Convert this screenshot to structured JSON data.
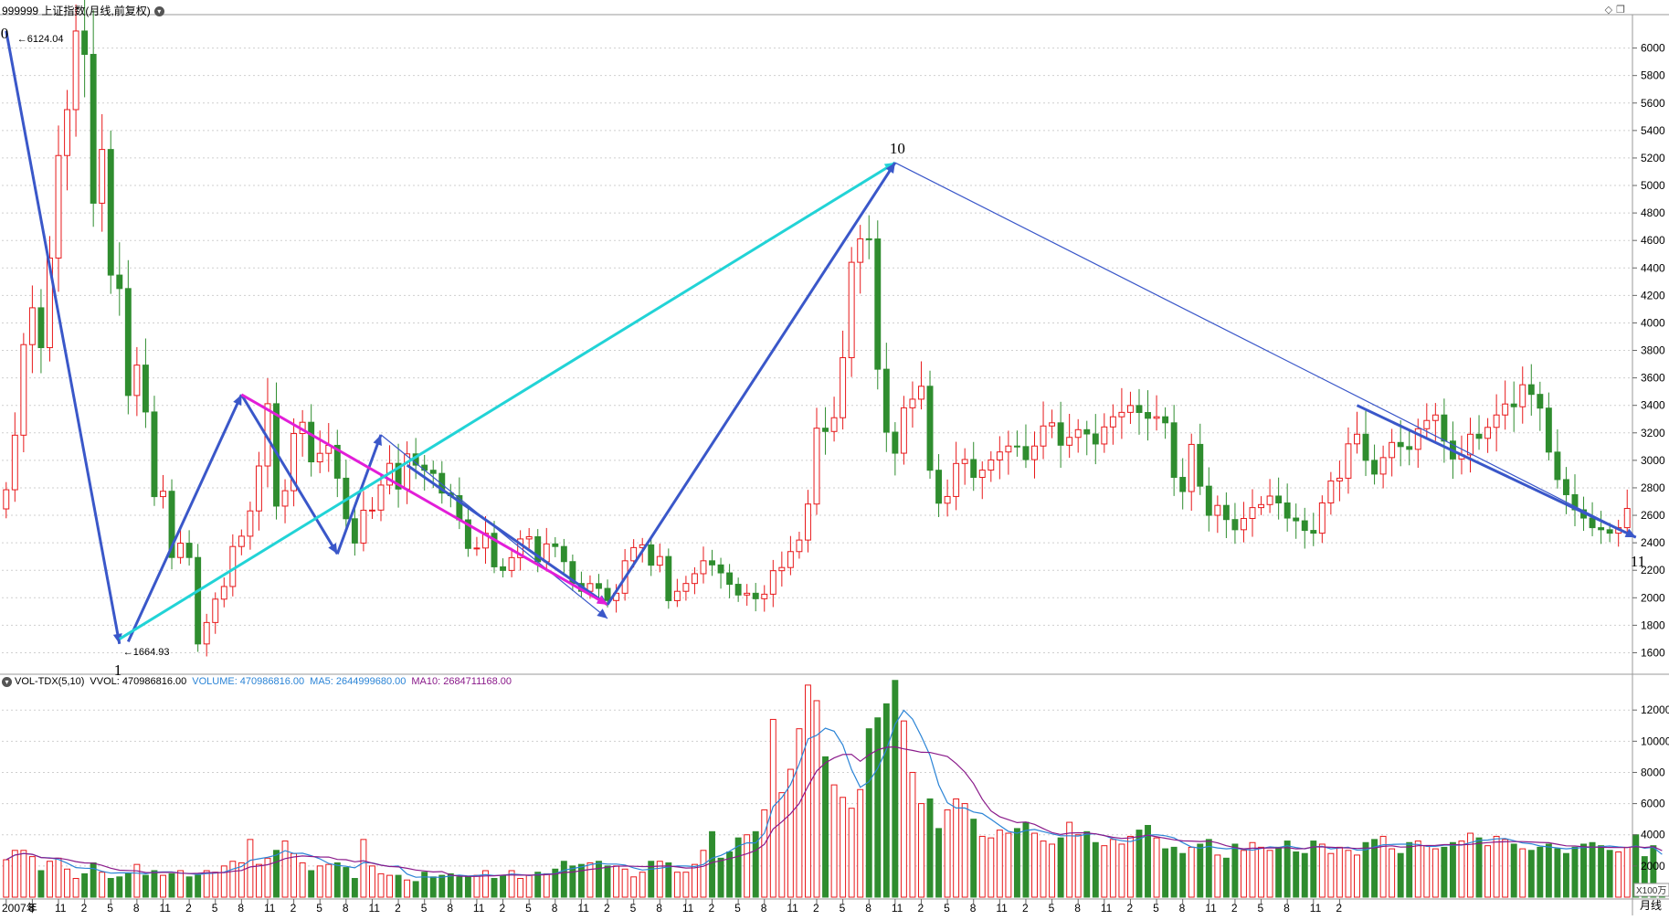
{
  "header": {
    "title": "999999 上证指数(月线,前复权)",
    "gear_icon": "chevron-down-icon",
    "window_icons": [
      "diamond-icon",
      "window-icon"
    ]
  },
  "indicator": {
    "name": "VOL-TDX(5,10)",
    "vvol": "VVOL: 470986816.00",
    "volume": "VOLUME: 470986816.00",
    "ma5": "MA5: 2644999680.00",
    "ma10": "MA10: 2684711168.00"
  },
  "period_label": "月线",
  "volume_unit": "X100万",
  "colors": {
    "up": "#e8191b",
    "down": "#2f8d2f",
    "wave": "#3a57c9",
    "cyan": "#22d3d6",
    "magenta": "#e21ed8",
    "ma5": "#2b84d6",
    "ma10": "#8a1a8a",
    "grid": "#cfcfcf"
  },
  "chart_data": [
    {
      "type": "candlestick",
      "price_axis": {
        "ticks": [
          1600,
          1800,
          2000,
          2200,
          2400,
          2600,
          2800,
          3000,
          3200,
          3400,
          3600,
          3800,
          4000,
          4200,
          4400,
          4600,
          4800,
          5000,
          5200,
          5400,
          5600,
          5800,
          6000
        ],
        "range": [
          1510,
          6230
        ]
      },
      "x_labels": [
        "2007年",
        "8",
        "11",
        "2",
        "5",
        "8",
        "11",
        "2",
        "5",
        "8",
        "11",
        "2",
        "5",
        "8",
        "11",
        "2",
        "5",
        "8",
        "11",
        "2",
        "5",
        "8",
        "11",
        "2",
        "5",
        "8",
        "11",
        "2",
        "5",
        "8",
        "11",
        "2",
        "5",
        "8",
        "11",
        "2",
        "5",
        "8",
        "11",
        "2",
        "5",
        "8",
        "11",
        "2",
        "5",
        "8",
        "11",
        "2",
        "5",
        "8",
        "11",
        "2"
      ],
      "annotations": {
        "peak_value": "6124.04",
        "trough_value": "1664.93",
        "wave_labels": [
          {
            "text": "0",
            "month": 0
          },
          {
            "text": "1",
            "month": 13
          },
          {
            "text": "10",
            "month": 102
          },
          {
            "text": "11",
            "month": 187
          }
        ]
      },
      "closes": [
        2786,
        3183,
        3842,
        4110,
        3820,
        4472,
        5218,
        5552,
        6124,
        5954,
        4871,
        5262,
        4348,
        4250,
        3472,
        3693,
        3352,
        2736,
        2775,
        2293,
        2397,
        2293,
        1664,
        1820,
        1990,
        2082,
        2373,
        2448,
        2632,
        2959,
        3412,
        2667,
        2779,
        3195,
        3277,
        2989,
        3051,
        3109,
        2870,
        2575,
        2398,
        2637,
        2638,
        2820,
        2978,
        2791,
        3047,
        2965,
        2928,
        2905,
        2762,
        2743,
        2567,
        2359,
        2362,
        2469,
        2225,
        2199,
        2292,
        2428,
        2444,
        2262,
        2392,
        2373,
        2263,
        2104,
        2047,
        2103,
        2068,
        1980,
        2033,
        2269,
        2365,
        2385,
        2237,
        2300,
        1979,
        2047,
        2104,
        2175,
        2269,
        2239,
        2181,
        2098,
        2020,
        2033,
        1993,
        2026,
        2197,
        2220,
        2336,
        2420,
        2682,
        3234,
        3210,
        3310,
        3747,
        4441,
        4612,
        4611,
        3663,
        3205,
        3052,
        3382,
        3445,
        3539,
        2928,
        2688,
        2737,
        2977,
        3006,
        2876,
        2929,
        3003,
        3061,
        3104,
        3100,
        3005,
        3104,
        3250,
        3273,
        3110,
        3167,
        3223,
        3192,
        3119,
        3243,
        3317,
        3349,
        3399,
        3348,
        3306,
        3317,
        3273,
        2876,
        2773,
        3116,
        2812,
        2600,
        2672,
        2569,
        2495,
        2577,
        2656,
        2678,
        2740,
        2690,
        2580,
        2560,
        2490,
        2470,
        2690,
        2850,
        2870,
        3120,
        3190,
        3000,
        2900,
        3020,
        3130,
        3100,
        3080,
        3230,
        3290,
        3330,
        3140,
        3010,
        3040,
        3190,
        3160,
        3240,
        3330,
        3410,
        3390,
        3550,
        3480,
        3380,
        3060,
        2860,
        2750,
        2640,
        2580,
        2510,
        2495,
        2470,
        2510,
        2650
      ],
      "wave_lines": [
        {
          "color": "wave",
          "width": "thick",
          "from": [
            0,
            6124
          ],
          "to": [
            13,
            1664
          ]
        },
        {
          "color": "wave",
          "width": "thick",
          "from": [
            14,
            1680
          ],
          "to": [
            27,
            3478
          ]
        },
        {
          "color": "wave",
          "width": "thick",
          "from": [
            27,
            3478
          ],
          "to": [
            38,
            2319
          ]
        },
        {
          "color": "wave",
          "width": "thick",
          "from": [
            38,
            2319
          ],
          "to": [
            43,
            3186
          ]
        },
        {
          "color": "wave",
          "width": "thin",
          "from": [
            43,
            3186
          ],
          "to": [
            69,
            1849
          ]
        },
        {
          "color": "wave",
          "width": "thick",
          "from": [
            46,
            2965
          ],
          "to": [
            69,
            1950
          ]
        },
        {
          "color": "magenta",
          "width": "thick",
          "from": [
            27,
            3478
          ],
          "to": [
            69,
            1950
          ]
        },
        {
          "color": "cyan",
          "width": "thick",
          "from": [
            13,
            1700
          ],
          "to": [
            102,
            5166
          ]
        },
        {
          "color": "wave",
          "width": "thick",
          "from": [
            69,
            1950
          ],
          "to": [
            102,
            5166
          ]
        },
        {
          "color": "wave",
          "width": "thin",
          "from": [
            102,
            5166
          ],
          "to": [
            187,
            2440
          ]
        },
        {
          "color": "wave",
          "width": "thick",
          "from": [
            155,
            3400
          ],
          "to": [
            187,
            2440
          ]
        }
      ]
    },
    {
      "type": "bar",
      "name": "VOLUME",
      "axis": {
        "ticks": [
          2000,
          4000,
          6000,
          8000,
          10000,
          12000
        ],
        "range": [
          0,
          13300
        ],
        "unit": "X100万"
      },
      "values": [
        2400,
        3000,
        3000,
        2600,
        1700,
        2300,
        2500,
        1800,
        1200,
        1500,
        2200,
        1600,
        1200,
        1300,
        1500,
        2100,
        1400,
        1700,
        1400,
        1500,
        1700,
        1300,
        1400,
        1700,
        1600,
        2000,
        2300,
        2200,
        3700,
        2100,
        2500,
        3000,
        3600,
        2800,
        2200,
        1700,
        2000,
        2100,
        2200,
        1900,
        1200,
        3700,
        2000,
        1500,
        1400,
        1400,
        1100,
        1000,
        1600,
        1300,
        1400,
        1500,
        1300,
        1300,
        1400,
        1700,
        1200,
        1400,
        1700,
        1200,
        1400,
        1600,
        1500,
        1800,
        2300,
        2000,
        2100,
        2200,
        2300,
        2000,
        2000,
        1800,
        1300,
        1600,
        2300,
        2300,
        2200,
        1600,
        1600,
        2100,
        3000,
        4200,
        2500,
        2900,
        3800,
        4000,
        4200,
        5600,
        11400,
        6700,
        8200,
        10800,
        13600,
        12600,
        9000,
        7200,
        6400,
        5700,
        6900,
        10800,
        11500,
        12400,
        13900,
        11300,
        8000,
        6000,
        6300,
        4400,
        5600,
        6300,
        6000,
        5000,
        3900,
        3800,
        4300,
        4100,
        4400,
        4800,
        4100,
        3600,
        3400,
        3800,
        4800,
        4000,
        4200,
        3500,
        3300,
        3700,
        3400,
        3900,
        4300,
        4600,
        3800,
        3100,
        3200,
        2800,
        3200,
        3400,
        3700,
        2700,
        2500,
        3400,
        3000,
        3500,
        3200,
        3000,
        3200,
        3600,
        2900,
        2800,
        3600,
        3400,
        2800,
        3200,
        3000,
        2700,
        3500,
        3700,
        3900,
        3100,
        2800,
        3500,
        3600,
        3300,
        3100,
        3200,
        3500,
        3600,
        4100,
        3800,
        3300,
        3900,
        3700,
        3400,
        3100,
        3000,
        3200,
        3400,
        3100,
        2800,
        3200,
        3400,
        3500,
        3300,
        3000,
        2900,
        3200,
        4000,
        2600,
        3300,
        600
      ],
      "ma5": "computed",
      "ma10": "computed"
    }
  ]
}
